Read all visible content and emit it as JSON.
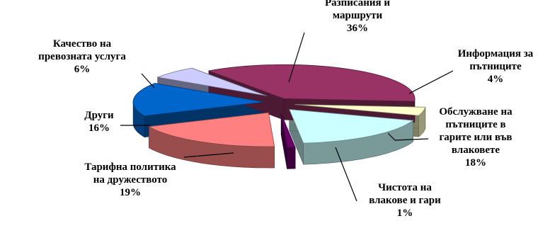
{
  "chart_data": {
    "type": "pie",
    "title": "",
    "slices": [
      {
        "label_lines": [
          "Разписания и",
          "маршрути"
        ],
        "value_label": "36%",
        "value": 36,
        "color": "#993366"
      },
      {
        "label_lines": [
          "Информация за",
          "пътниците"
        ],
        "value_label": "4%",
        "value": 4,
        "color": "#ffffcc"
      },
      {
        "label_lines": [
          "Обслужване на",
          "пътниците в",
          "гарите или във",
          "влаковете"
        ],
        "value_label": "18%",
        "value": 18,
        "color": "#ccffff"
      },
      {
        "label_lines": [
          "Чистота на",
          "влакове и гари"
        ],
        "value_label": "1%",
        "value": 1,
        "color": "#660066"
      },
      {
        "label_lines": [
          "Тарифна политика",
          "на дружеството"
        ],
        "value_label": "19%",
        "value": 19,
        "color": "#ff8080"
      },
      {
        "label_lines": [
          "Други"
        ],
        "value_label": "16%",
        "value": 16,
        "color": "#0066cc"
      },
      {
        "label_lines": [
          "Качество на",
          "превозната услуга"
        ],
        "value_label": "6%",
        "value": 6,
        "color": "#ccccff"
      }
    ]
  }
}
